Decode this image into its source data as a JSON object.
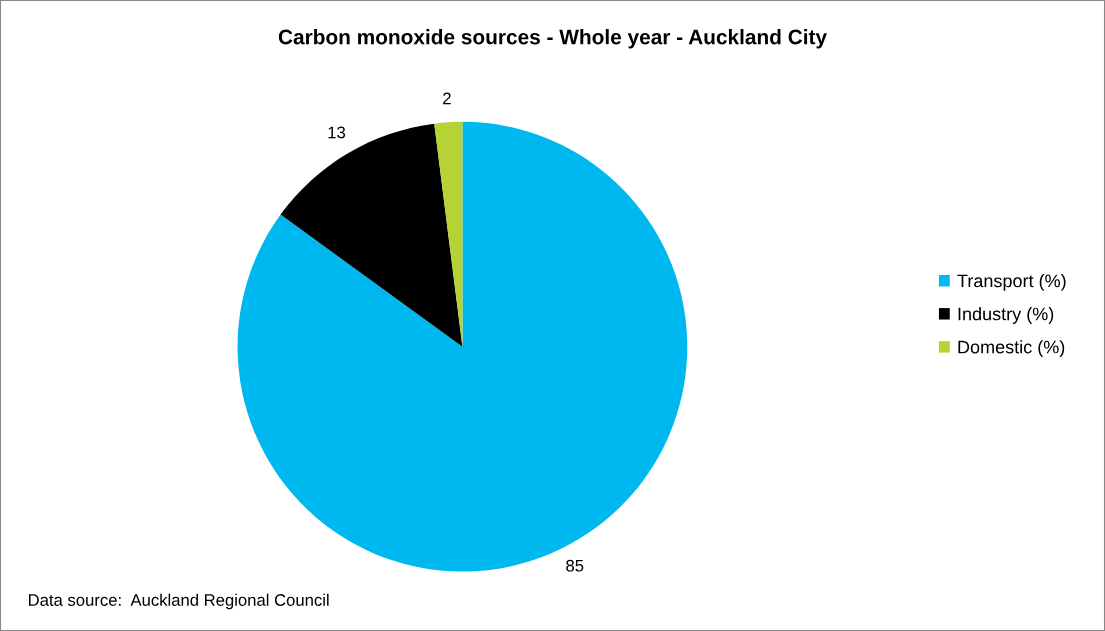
{
  "chart_data": {
    "type": "pie",
    "title": "Carbon monoxide sources - Whole year - Auckland City",
    "categories": [
      "Transport (%)",
      "Industry (%)",
      "Domestic (%)"
    ],
    "values": [
      85,
      13,
      2
    ],
    "colors": [
      "#00b8f0",
      "#000000",
      "#b5d334"
    ],
    "data_labels": true,
    "legend": "right",
    "annotations": [
      "Data source:  Auckland Regional Council"
    ]
  }
}
